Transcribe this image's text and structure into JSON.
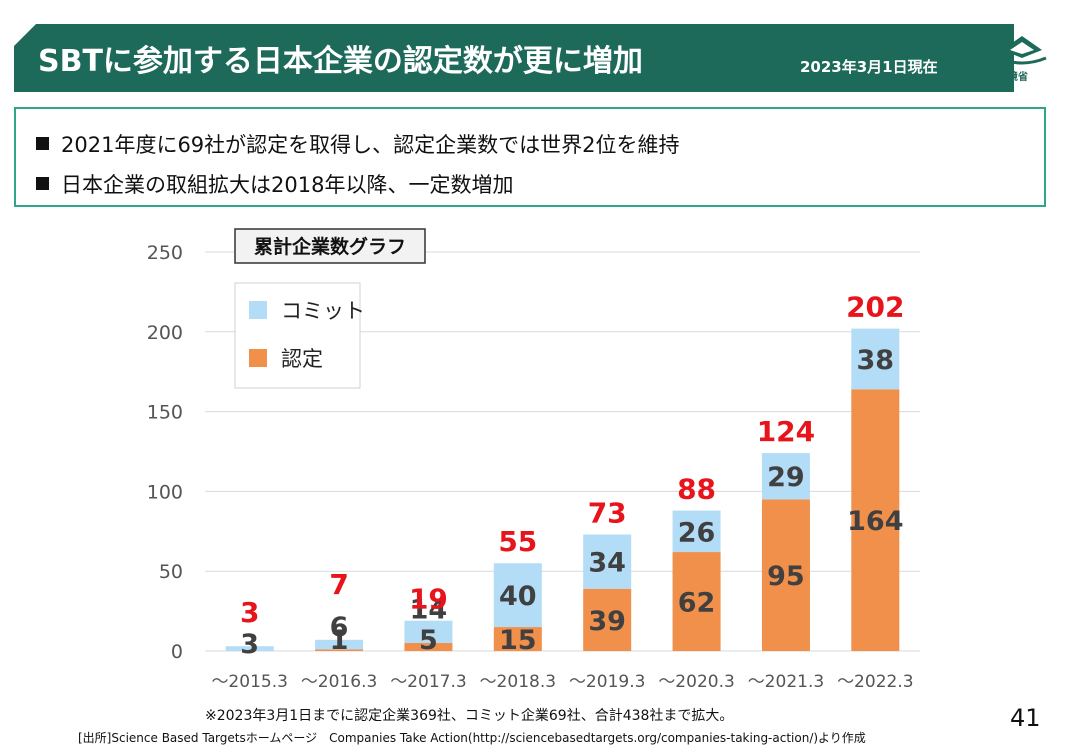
{
  "header": {
    "title": "SBTに参加する日本企業の認定数が更に増加",
    "date": "2023年3月1日現在",
    "logo_text": "環境省"
  },
  "summary": {
    "bullets": [
      "2021年度に69社が認定を取得し、認定企業数では世界2位を維持",
      "日本企業の取組拡大は2018年以降、一定数増加"
    ]
  },
  "chart_data": {
    "type": "bar",
    "stacked": true,
    "title": "累計企業数グラフ",
    "categories": [
      "～2015.3",
      "～2016.3",
      "～2017.3",
      "～2018.3",
      "～2019.3",
      "～2020.3",
      "～2021.3",
      "～2022.3"
    ],
    "series": [
      {
        "name": "認定",
        "color": "#f0904a",
        "values": [
          0,
          1,
          5,
          15,
          39,
          62,
          95,
          164
        ],
        "labels": [
          "",
          "1",
          "5",
          "15",
          "39",
          "62",
          "95",
          "164"
        ]
      },
      {
        "name": "コミット",
        "color": "#b3dcf7",
        "values": [
          3,
          6,
          14,
          40,
          34,
          26,
          29,
          38
        ],
        "labels": [
          "3",
          "6",
          "14",
          "40",
          "34",
          "26",
          "29",
          "38"
        ]
      }
    ],
    "totals": [
      3,
      7,
      19,
      55,
      73,
      88,
      124,
      202
    ],
    "ylim": [
      0,
      250
    ],
    "yticks": [
      0,
      50,
      100,
      150,
      200,
      250
    ],
    "grid": true,
    "legend_position": "top-left",
    "total_color": "#e8141b"
  },
  "footer": {
    "note": "※2023年3月1日までに認定企業369社、コミット企業69社、合計438社まで拡大。",
    "source": "[出所]Science Based Targetsホームページ　Companies Take Action(http://sciencebasedtargets.org/companies-taking-action/)より作成",
    "page": "41"
  }
}
